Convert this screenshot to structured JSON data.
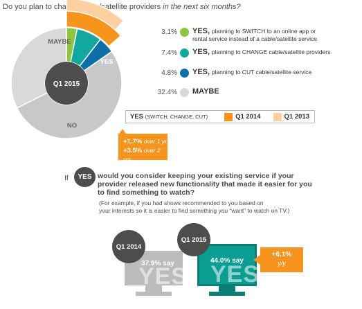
{
  "title": {
    "main": "Do you plan to change cable/satellite providers ",
    "italic": "in the next six months?"
  },
  "colors": {
    "switch": "#8dc63f",
    "change": "#13a89e",
    "cut": "#0c6fa8",
    "maybe": "#d9d9d9",
    "no": "#c8c8c8",
    "q1_2014": "#f7941d",
    "q1_2013": "#fcd0a1",
    "dark": "#4d4d4d"
  },
  "chart_data": [
    {
      "type": "pie",
      "title": "Do you plan to change cable/satellite providers in the next six months?",
      "center_label": "Q1 2015",
      "slices": [
        {
          "label": "YES, planning to SWITCH to an online app or rental service instead of a cable/satellite service",
          "value": 3.1,
          "color": "#8dc63f"
        },
        {
          "label": "YES, planning to CHANGE cable/satellite providers",
          "value": 7.4,
          "color": "#13a89e"
        },
        {
          "label": "YES, planning to CUT cable/satellite service",
          "value": 4.8,
          "color": "#0c6fa8"
        },
        {
          "label": "MAYBE",
          "value": 32.4,
          "color": "#d9d9d9"
        },
        {
          "label": "NO",
          "value": 52.3,
          "color": "#c8c8c8"
        }
      ],
      "yes_total": {
        "Q1 2015": 15.3,
        "Q1 2014": 13.6,
        "Q1 2013": 11.8
      },
      "slice_labels": [
        "MAYBE",
        "YES",
        "NO"
      ]
    },
    {
      "type": "bar",
      "categories": [
        "Q1 2014",
        "Q1 2015"
      ],
      "values": [
        37.9,
        44.0
      ],
      "value_labels": [
        "37.9% say",
        "44.0% say"
      ],
      "watermark": "YES"
    }
  ],
  "legend": [
    {
      "pct": "3.1%",
      "bold": "YES,",
      "text": "planning to SWITCH to an online app or",
      "text2": "rental service instead of a cable/satellite service"
    },
    {
      "pct": "7.4%",
      "bold": "YES,",
      "text": "planning to CHANGE cable/satellite providers",
      "text2": ""
    },
    {
      "pct": "4.8%",
      "bold": "YES,",
      "text": "planning to CUT cable/satellite service",
      "text2": ""
    },
    {
      "pct": "32.4%",
      "bold": "MAYBE",
      "text": "",
      "text2": ""
    }
  ],
  "key": {
    "yes_label": "YES",
    "yes_sub": "(SWITCH, CHANGE, CUT)",
    "q1_2014": "Q1 2014",
    "q1_2013": "Q1 2013"
  },
  "change_box": {
    "line1_val": "+1.7%",
    "line1_txt": "over 1 yr",
    "line2_val": "+3.5%",
    "line2_txt": "over 2 yrs"
  },
  "donut_labels": {
    "center": "Q1 2015",
    "maybe": "MAYBE",
    "yes": "YES",
    "no": "NO"
  },
  "question": {
    "if": "If",
    "yes": "YES",
    "line1": "would you consider keeping your existing service if your",
    "line2": "provider released new  functionality that made it easier for you",
    "line3": "to find something to watch?",
    "ex1": "(For example, if you had shows recommended to you based on",
    "ex2": "your interests so it is easier to find something you “want” to watch on TV.)"
  },
  "monitors": {
    "q2014_label": "Q1 2014",
    "q2014_say": "37.9% say",
    "q2015_label": "Q1 2015",
    "q2015_say": "44.0% say",
    "watermark": "YES"
  },
  "growth": {
    "value": "+6.1%",
    "period": "y/y"
  }
}
